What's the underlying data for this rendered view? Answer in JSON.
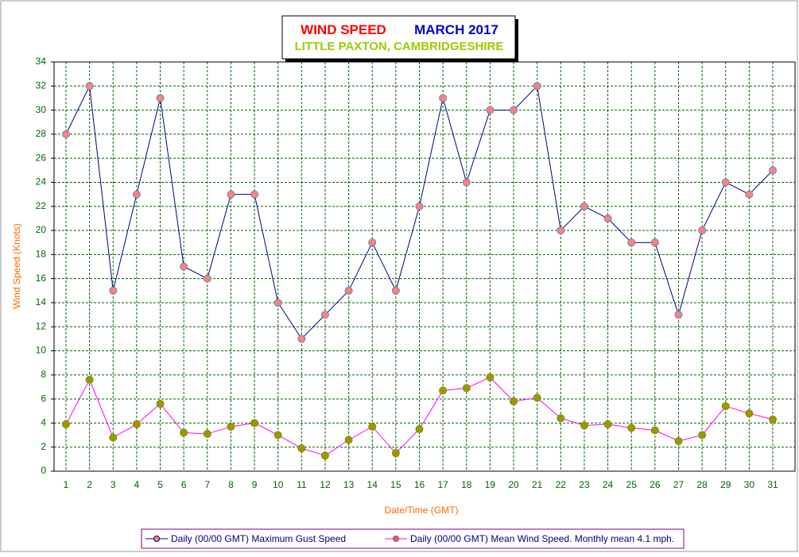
{
  "chart_data": {
    "type": "line",
    "title": "WIND SPEED",
    "title_date": "MARCH 2017",
    "subtitle": "LITTLE PAXTON, CAMBRIDGESHIRE",
    "x_label": "Date/Time (GMT)",
    "y_label": "Wind Speed (Knots)",
    "categories": [
      "1",
      "2",
      "3",
      "4",
      "5",
      "6",
      "7",
      "8",
      "9",
      "10",
      "11",
      "12",
      "13",
      "14",
      "15",
      "16",
      "17",
      "18",
      "19",
      "20",
      "21",
      "22",
      "23",
      "24",
      "25",
      "26",
      "27",
      "28",
      "29",
      "30",
      "31"
    ],
    "series": [
      {
        "name": "Daily (00/00 GMT) Maximum Gust Speed",
        "color": "#000080",
        "marker_color": "#ff8080",
        "values": [
          28,
          32,
          15,
          23,
          31,
          17,
          16,
          23,
          23,
          14,
          11,
          13,
          15,
          19,
          15,
          22,
          31,
          24,
          30,
          30,
          32,
          20,
          22,
          21,
          19,
          19,
          13,
          20,
          24,
          23,
          25
        ]
      },
      {
        "name": "Daily (00/00 GMT) Mean Wind Speed. Monthly mean 4.1 mph.",
        "color": "#ff00ff",
        "marker_color": "#999900",
        "values": [
          3.9,
          7.6,
          2.8,
          3.9,
          5.6,
          3.2,
          3.1,
          3.7,
          4.0,
          3.0,
          1.9,
          1.3,
          2.6,
          3.7,
          1.5,
          3.5,
          6.7,
          6.9,
          7.8,
          5.8,
          6.1,
          4.4,
          3.8,
          3.9,
          3.6,
          3.4,
          2.5,
          3.0,
          5.4,
          4.8,
          4.3
        ]
      }
    ],
    "ylim": [
      0,
      34
    ],
    "yticks": [
      0,
      2,
      4,
      6,
      8,
      10,
      12,
      14,
      16,
      18,
      20,
      22,
      24,
      26,
      28,
      30,
      32,
      34
    ],
    "grid": true
  }
}
